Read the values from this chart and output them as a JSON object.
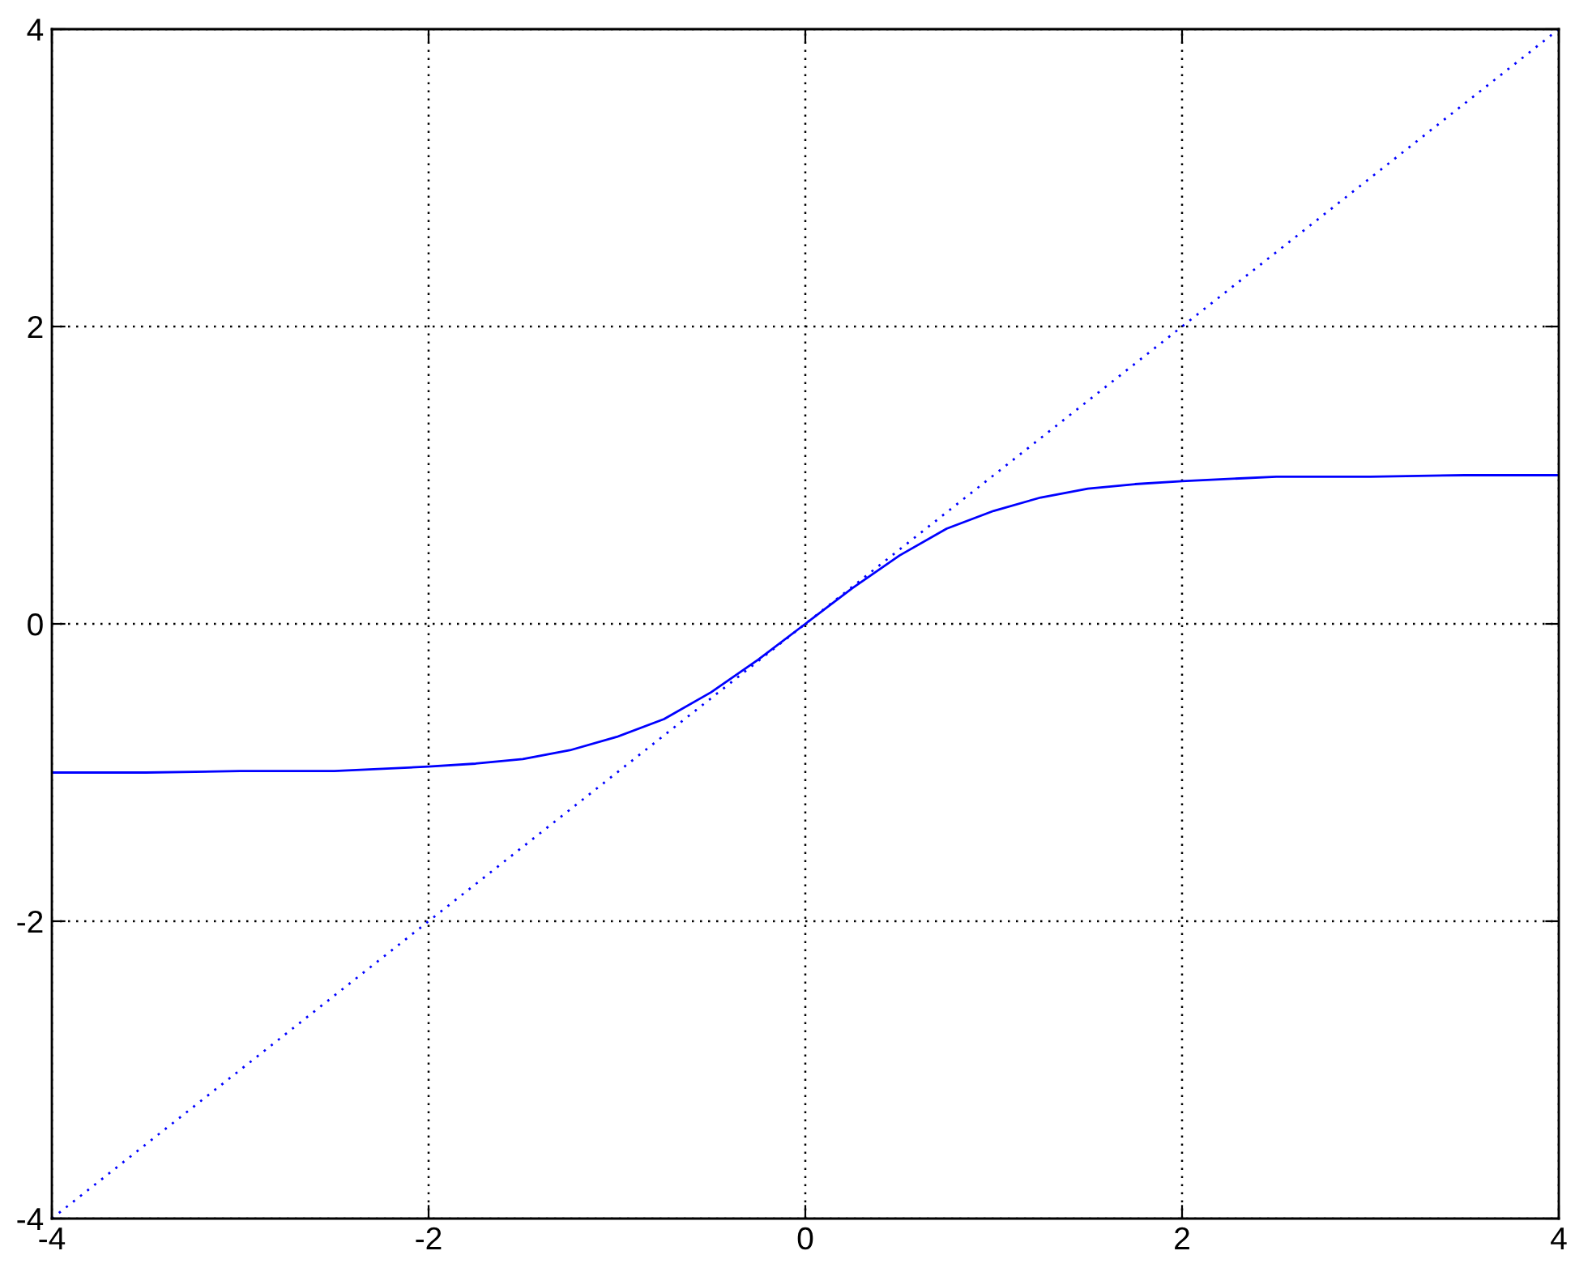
{
  "chart_data": {
    "type": "line",
    "xlim": [
      -4,
      4
    ],
    "ylim": [
      -4,
      4
    ],
    "xticks": [
      -4,
      -2,
      0,
      2,
      4
    ],
    "yticks": [
      -4,
      -2,
      0,
      2,
      4
    ],
    "grid": true,
    "series": [
      {
        "color": "#0000ff",
        "line_style": "solid",
        "x": [
          -4,
          -3.5,
          -3,
          -2.5,
          -2,
          -1.75,
          -1.5,
          -1.25,
          -1,
          -0.75,
          -0.5,
          -0.25,
          0,
          0.25,
          0.5,
          0.75,
          1,
          1.25,
          1.5,
          1.75,
          2,
          2.5,
          3,
          3.5,
          4
        ],
        "values": [
          -1.0,
          -1.0,
          -0.99,
          -0.99,
          -0.96,
          -0.94,
          -0.91,
          -0.85,
          -0.76,
          -0.64,
          -0.46,
          -0.24,
          0,
          0.24,
          0.46,
          0.64,
          0.76,
          0.85,
          0.91,
          0.94,
          0.96,
          0.99,
          0.99,
          1.0,
          1.0
        ]
      },
      {
        "color": "#0000ff",
        "line_style": "dotted",
        "x": [
          -4,
          4
        ],
        "values": [
          -4,
          4
        ]
      }
    ]
  }
}
